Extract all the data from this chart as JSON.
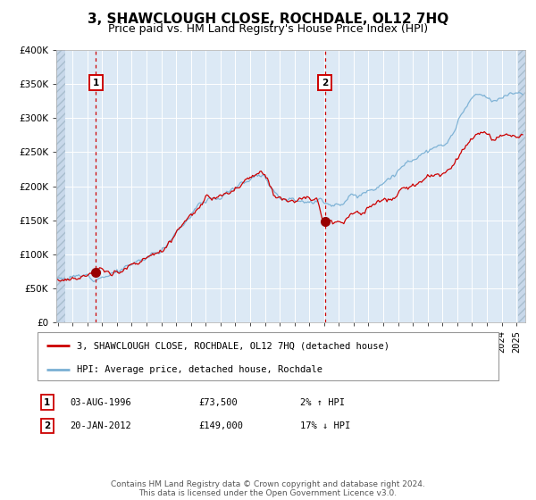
{
  "title": "3, SHAWCLOUGH CLOSE, ROCHDALE, OL12 7HQ",
  "subtitle": "Price paid vs. HM Land Registry's House Price Index (HPI)",
  "legend_house": "3, SHAWCLOUGH CLOSE, ROCHDALE, OL12 7HQ (detached house)",
  "legend_hpi": "HPI: Average price, detached house, Rochdale",
  "annotation1_label": "1",
  "annotation1_date": "03-AUG-1996",
  "annotation1_price": "£73,500",
  "annotation1_hpi": "2% ↑ HPI",
  "annotation2_label": "2",
  "annotation2_date": "20-JAN-2012",
  "annotation2_price": "£149,000",
  "annotation2_hpi": "17% ↓ HPI",
  "footer": "Contains HM Land Registry data © Crown copyright and database right 2024.\nThis data is licensed under the Open Government Licence v3.0.",
  "purchase1_year": 1996.58,
  "purchase1_value": 73500,
  "purchase2_year": 2012.05,
  "purchase2_value": 149000,
  "ylim": [
    0,
    400000
  ],
  "xlim_start": 1993.9,
  "xlim_end": 2025.6,
  "background_color": "#dce9f5",
  "grid_color": "#ffffff",
  "house_line_color": "#cc0000",
  "hpi_line_color": "#7ab0d4",
  "marker_color": "#990000",
  "vline_color": "#cc0000",
  "annotation_box_color": "#cc0000",
  "title_fontsize": 11,
  "subtitle_fontsize": 9,
  "tick_fontsize": 7.5,
  "legend_fontsize": 8,
  "footer_fontsize": 6.5,
  "hpi_waypoints": [
    [
      1994.0,
      65000
    ],
    [
      1995.0,
      66500
    ],
    [
      1996.0,
      68000
    ],
    [
      1997.0,
      71000
    ],
    [
      1998.0,
      76000
    ],
    [
      1999.0,
      84000
    ],
    [
      2000.0,
      95000
    ],
    [
      2001.0,
      108000
    ],
    [
      2002.0,
      135000
    ],
    [
      2003.0,
      160000
    ],
    [
      2004.0,
      178000
    ],
    [
      2005.0,
      186000
    ],
    [
      2006.0,
      197000
    ],
    [
      2007.0,
      212000
    ],
    [
      2007.8,
      220000
    ],
    [
      2008.5,
      198000
    ],
    [
      2009.0,
      188000
    ],
    [
      2009.5,
      183000
    ],
    [
      2010.0,
      184000
    ],
    [
      2010.5,
      183000
    ],
    [
      2011.0,
      180000
    ],
    [
      2011.5,
      178000
    ],
    [
      2012.0,
      178000
    ],
    [
      2012.5,
      175000
    ],
    [
      2013.0,
      176000
    ],
    [
      2013.5,
      180000
    ],
    [
      2014.0,
      185000
    ],
    [
      2015.0,
      195000
    ],
    [
      2016.0,
      208000
    ],
    [
      2017.0,
      222000
    ],
    [
      2018.0,
      240000
    ],
    [
      2019.0,
      252000
    ],
    [
      2020.0,
      256000
    ],
    [
      2020.5,
      268000
    ],
    [
      2021.0,
      290000
    ],
    [
      2021.5,
      310000
    ],
    [
      2022.0,
      328000
    ],
    [
      2022.5,
      332000
    ],
    [
      2023.0,
      325000
    ],
    [
      2023.5,
      322000
    ],
    [
      2024.0,
      328000
    ],
    [
      2024.5,
      335000
    ],
    [
      2025.4,
      340000
    ]
  ],
  "house_waypoints": [
    [
      1994.0,
      63000
    ],
    [
      1995.0,
      65000
    ],
    [
      1996.0,
      67500
    ],
    [
      1996.58,
      73500
    ],
    [
      1997.0,
      73000
    ],
    [
      1997.5,
      74000
    ],
    [
      1998.0,
      76000
    ],
    [
      1999.0,
      84000
    ],
    [
      2000.0,
      94000
    ],
    [
      2001.0,
      107000
    ],
    [
      2002.0,
      133000
    ],
    [
      2003.0,
      158000
    ],
    [
      2004.0,
      176000
    ],
    [
      2005.0,
      184000
    ],
    [
      2006.0,
      195000
    ],
    [
      2007.0,
      210000
    ],
    [
      2007.8,
      218000
    ],
    [
      2008.5,
      196000
    ],
    [
      2009.0,
      186000
    ],
    [
      2009.5,
      181000
    ],
    [
      2010.0,
      182000
    ],
    [
      2010.5,
      181000
    ],
    [
      2011.0,
      180000
    ],
    [
      2011.5,
      178000
    ],
    [
      2012.0,
      149000
    ],
    [
      2012.05,
      149000
    ],
    [
      2012.3,
      150000
    ],
    [
      2012.5,
      152000
    ],
    [
      2013.0,
      153000
    ],
    [
      2013.5,
      156000
    ],
    [
      2014.0,
      160000
    ],
    [
      2015.0,
      168000
    ],
    [
      2016.0,
      176000
    ],
    [
      2017.0,
      187000
    ],
    [
      2018.0,
      200000
    ],
    [
      2019.0,
      212000
    ],
    [
      2020.0,
      216000
    ],
    [
      2020.5,
      225000
    ],
    [
      2021.0,
      243000
    ],
    [
      2021.5,
      258000
    ],
    [
      2022.0,
      270000
    ],
    [
      2022.5,
      274000
    ],
    [
      2023.0,
      270000
    ],
    [
      2023.5,
      266000
    ],
    [
      2024.0,
      271000
    ],
    [
      2024.5,
      276000
    ],
    [
      2025.4,
      279000
    ]
  ]
}
